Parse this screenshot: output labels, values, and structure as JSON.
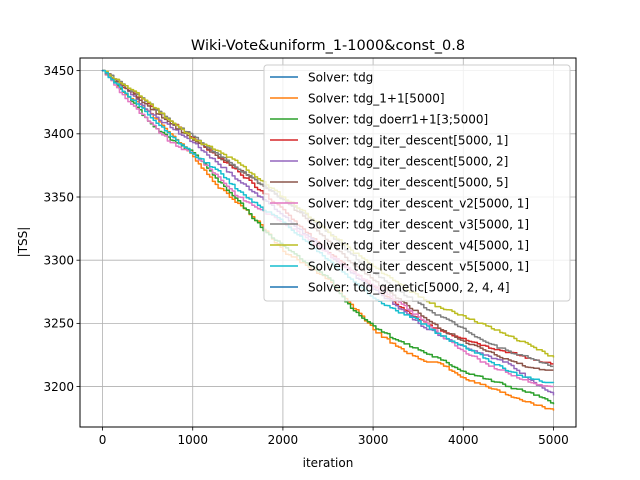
{
  "chart_data": {
    "type": "line",
    "title": "Wiki-Vote&uniform_1-1000&const_0.8",
    "xlabel": "iteration",
    "ylabel": "|TSS|",
    "xlim": [
      -250,
      5250
    ],
    "ylim": [
      3168,
      3460
    ],
    "xticks": [
      0,
      1000,
      2000,
      3000,
      4000,
      5000
    ],
    "xtick_labels": [
      "0",
      "1000",
      "2000",
      "3000",
      "4000",
      "5000"
    ],
    "yticks": [
      3200,
      3250,
      3300,
      3350,
      3400,
      3450
    ],
    "ytick_labels": [
      "3200",
      "3250",
      "3300",
      "3350",
      "3400",
      "3450"
    ],
    "grid": true,
    "legend_position": "upper right",
    "series": [
      {
        "name": "Solver: tdg",
        "color": "#1f77b4",
        "x": [
          0
        ],
        "y": [
          3450
        ]
      },
      {
        "name": "Solver: tdg_1+1[5000]",
        "color": "#ff7f0e",
        "x": [
          0,
          250,
          500,
          750,
          1000,
          1250,
          1500,
          1750,
          2000,
          2250,
          2500,
          2750,
          3000,
          3250,
          3500,
          3750,
          4000,
          4250,
          4500,
          4750,
          5000
        ],
        "y": [
          3450,
          3431,
          3418,
          3400,
          3382,
          3360,
          3345,
          3328,
          3307,
          3296,
          3285,
          3265,
          3245,
          3232,
          3222,
          3218,
          3207,
          3200,
          3193,
          3187,
          3181
        ]
      },
      {
        "name": "Solver: tdg_doerr1+1[3;5000]",
        "color": "#2ca02c",
        "x": [
          0,
          250,
          500,
          750,
          1000,
          1250,
          1500,
          1750,
          2000,
          2250,
          2500,
          2750,
          3000,
          3250,
          3500,
          3750,
          4000,
          4250,
          4500,
          4750,
          5000
        ],
        "y": [
          3450,
          3432,
          3410,
          3395,
          3385,
          3365,
          3347,
          3326,
          3311,
          3298,
          3286,
          3262,
          3248,
          3237,
          3229,
          3221,
          3212,
          3206,
          3200,
          3195,
          3186
        ]
      },
      {
        "name": "Solver: tdg_iter_descent[5000, 1]",
        "color": "#d62728",
        "x": [
          0,
          250,
          500,
          750,
          1000,
          1250,
          1500,
          1750,
          2000,
          2250,
          2500,
          2750,
          3000,
          3250,
          3500,
          3750,
          4000,
          4250,
          4500,
          4750,
          5000
        ],
        "y": [
          3450,
          3436,
          3424,
          3410,
          3397,
          3383,
          3370,
          3355,
          3340,
          3322,
          3306,
          3292,
          3279,
          3265,
          3253,
          3244,
          3238,
          3232,
          3227,
          3222,
          3218
        ]
      },
      {
        "name": "Solver: tdg_iter_descent[5000, 2]",
        "color": "#9467bd",
        "x": [
          0,
          250,
          500,
          750,
          1000,
          1250,
          1500,
          1750,
          2000,
          2250,
          2500,
          2750,
          3000,
          3250,
          3500,
          3750,
          4000,
          4250,
          4500,
          4750,
          5000
        ],
        "y": [
          3450,
          3436,
          3418,
          3405,
          3393,
          3378,
          3363,
          3350,
          3335,
          3320,
          3305,
          3290,
          3277,
          3264,
          3250,
          3240,
          3232,
          3225,
          3218,
          3205,
          3193
        ]
      },
      {
        "name": "Solver: tdg_iter_descent[5000, 5]",
        "color": "#8c564b",
        "x": [
          0,
          250,
          500,
          750,
          1000,
          1250,
          1500,
          1750,
          2000,
          2250,
          2500,
          2750,
          3000,
          3250,
          3500,
          3750,
          4000,
          4250,
          4500,
          4750,
          5000
        ],
        "y": [
          3450,
          3436,
          3422,
          3408,
          3395,
          3383,
          3372,
          3360,
          3348,
          3333,
          3315,
          3298,
          3284,
          3270,
          3258,
          3245,
          3236,
          3228,
          3221,
          3215,
          3213
        ]
      },
      {
        "name": "Solver: tdg_iter_descent_v2[5000, 1]",
        "color": "#e377c2",
        "x": [
          0,
          250,
          500,
          750,
          1000,
          1250,
          1500,
          1750,
          2000,
          2250,
          2500,
          2750,
          3000,
          3250,
          3500,
          3750,
          4000,
          4250,
          4500,
          4750,
          5000
        ],
        "y": [
          3450,
          3428,
          3410,
          3393,
          3384,
          3368,
          3350,
          3340,
          3330,
          3318,
          3305,
          3292,
          3280,
          3268,
          3255,
          3240,
          3228,
          3218,
          3210,
          3203,
          3200
        ]
      },
      {
        "name": "Solver: tdg_iter_descent_v3[5000, 1]",
        "color": "#7f7f7f",
        "x": [
          0,
          250,
          500,
          750,
          1000,
          1250,
          1500,
          1750,
          2000,
          2250,
          2500,
          2750,
          3000,
          3250,
          3500,
          3750,
          4000,
          4250,
          4500,
          4750,
          5000
        ],
        "y": [
          3450,
          3438,
          3425,
          3410,
          3398,
          3385,
          3372,
          3360,
          3348,
          3336,
          3322,
          3305,
          3290,
          3277,
          3266,
          3255,
          3246,
          3235,
          3228,
          3222,
          3216
        ]
      },
      {
        "name": "Solver: tdg_iter_descent_v4[5000, 1]",
        "color": "#bcbd22",
        "x": [
          0,
          250,
          500,
          750,
          1000,
          1250,
          1500,
          1750,
          2000,
          2250,
          2500,
          2750,
          3000,
          3250,
          3500,
          3750,
          4000,
          4250,
          4500,
          4750,
          5000
        ],
        "y": [
          3450,
          3438,
          3425,
          3410,
          3396,
          3387,
          3377,
          3363,
          3350,
          3337,
          3322,
          3308,
          3295,
          3283,
          3271,
          3262,
          3256,
          3248,
          3240,
          3232,
          3223
        ]
      },
      {
        "name": "Solver: tdg_iter_descent_v5[5000, 1]",
        "color": "#17becf",
        "x": [
          0,
          250,
          500,
          750,
          1000,
          1250,
          1500,
          1750,
          2000,
          2250,
          2500,
          2750,
          3000,
          3250,
          3500,
          3750,
          4000,
          4250,
          4500,
          4750,
          5000
        ],
        "y": [
          3450,
          3432,
          3415,
          3398,
          3384,
          3372,
          3355,
          3342,
          3330,
          3315,
          3300,
          3285,
          3270,
          3260,
          3252,
          3240,
          3232,
          3222,
          3212,
          3206,
          3203
        ]
      },
      {
        "name": "Solver: tdg_genetic[5000, 2, 4, 4]",
        "color": "#1f77b4",
        "x": [
          0
        ],
        "y": [
          3450
        ]
      }
    ]
  }
}
